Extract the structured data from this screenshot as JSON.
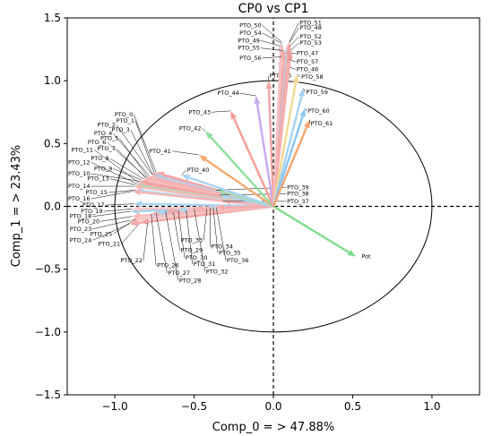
{
  "chart_data": {
    "type": "scatter",
    "subtype": "pca-loadings-biplot",
    "title": "CP0 vs CP1",
    "xlabel": "Comp_0 = > 47.88%",
    "ylabel": "Comp_1 = > 23.43%",
    "xlim": [
      -1.3,
      1.3
    ],
    "ylim": [
      -1.5,
      1.5
    ],
    "xticks": [
      -1.0,
      -0.5,
      0.0,
      0.5,
      1.0
    ],
    "yticks": [
      -1.5,
      -1.0,
      -0.5,
      0.0,
      0.5,
      1.0,
      1.5
    ],
    "xtick_labels": [
      "−1.0",
      "−0.5",
      "0.0",
      "0.5",
      "1.0"
    ],
    "ytick_labels": [
      "−1.5",
      "−1.0",
      "−0.5",
      "0.0",
      "0.5",
      "1.0",
      "1.5"
    ],
    "unit_circle": true,
    "origin_crosshair": "dashed",
    "grid": false,
    "vectors": [
      {
        "name": "Pot",
        "x": 0.52,
        "y": -0.4,
        "color": "#7fdc8c",
        "label_x": 0.55,
        "label_y": -0.4
      },
      {
        "name": "PTO_0",
        "x": -0.74,
        "y": 0.27,
        "color": "#f5a3a3",
        "label_x": -0.88,
        "label_y": 0.73
      },
      {
        "name": "PTO_1",
        "x": -0.75,
        "y": 0.26,
        "color": "#f6a8a8",
        "label_x": -0.87,
        "label_y": 0.68
      },
      {
        "name": "PTO_2",
        "x": -0.77,
        "y": 0.26,
        "color": "#f4a6a6",
        "label_x": -0.99,
        "label_y": 0.65
      },
      {
        "name": "PTO_3",
        "x": -0.76,
        "y": 0.25,
        "color": "#a9d4f2",
        "label_x": -0.9,
        "label_y": 0.61
      },
      {
        "name": "PTO_4",
        "x": -0.78,
        "y": 0.24,
        "color": "#f7b3b3",
        "label_x": -1.01,
        "label_y": 0.58
      },
      {
        "name": "PTO_5",
        "x": -0.79,
        "y": 0.23,
        "color": "#b6d9f2",
        "label_x": -0.97,
        "label_y": 0.54
      },
      {
        "name": "PTO_6",
        "x": -0.8,
        "y": 0.23,
        "color": "#f5a9a9",
        "label_x": -1.05,
        "label_y": 0.51
      },
      {
        "name": "PTO_7",
        "x": -0.8,
        "y": 0.22,
        "color": "#f8c0c0",
        "label_x": -0.99,
        "label_y": 0.46
      },
      {
        "name": "PTO_8",
        "x": -0.82,
        "y": 0.22,
        "color": "#f6b0b0",
        "label_x": -1.03,
        "label_y": 0.38
      },
      {
        "name": "PTO_9",
        "x": -0.83,
        "y": 0.21,
        "color": "#f8c4c4",
        "label_x": -1.01,
        "label_y": 0.3
      },
      {
        "name": "PTO_10",
        "x": -0.84,
        "y": 0.2,
        "color": "#f5a5a5",
        "label_x": -1.15,
        "label_y": 0.26
      },
      {
        "name": "PTO_11",
        "x": -0.85,
        "y": 0.19,
        "color": "#f4a0a0",
        "label_x": -1.13,
        "label_y": 0.45
      },
      {
        "name": "PTO_12",
        "x": -0.86,
        "y": 0.18,
        "color": "#f6adad",
        "label_x": -1.15,
        "label_y": 0.35
      },
      {
        "name": "PTO_13",
        "x": -0.87,
        "y": 0.17,
        "color": "#a6ddb0",
        "label_x": -1.03,
        "label_y": 0.22
      },
      {
        "name": "PTO_14",
        "x": -0.88,
        "y": 0.16,
        "color": "#f7b8b8",
        "label_x": -1.15,
        "label_y": 0.16
      },
      {
        "name": "PTO_15",
        "x": -0.87,
        "y": 0.13,
        "color": "#b5dcef",
        "label_x": -1.04,
        "label_y": 0.11
      },
      {
        "name": "PTO_16",
        "x": -0.89,
        "y": 0.12,
        "color": "#f5b2b2",
        "label_x": -1.15,
        "label_y": 0.06
      },
      {
        "name": "PTO_17",
        "x": -0.88,
        "y": 0.02,
        "color": "#a8d3f0",
        "label_x": -1.06,
        "label_y": 0.01
      },
      {
        "name": "PTO_18",
        "x": -0.9,
        "y": -0.04,
        "color": "#a3d0ee",
        "label_x": -1.14,
        "label_y": -0.08
      },
      {
        "name": "PTO_19",
        "x": -0.89,
        "y": -0.02,
        "color": "#f8c8c8",
        "label_x": -1.07,
        "label_y": -0.04
      },
      {
        "name": "PTO_20",
        "x": -0.89,
        "y": -0.08,
        "color": "#f6b6b6",
        "label_x": -1.09,
        "label_y": -0.12
      },
      {
        "name": "PTO_21",
        "x": -0.84,
        "y": -0.13,
        "color": "#f4a3a3",
        "label_x": -0.96,
        "label_y": -0.3
      },
      {
        "name": "PTO_22",
        "x": -0.79,
        "y": -0.09,
        "color": "#b8dff4",
        "label_x": -0.82,
        "label_y": -0.43
      },
      {
        "name": "PTO_23",
        "x": -0.9,
        "y": -0.11,
        "color": "#f7bcbc",
        "label_x": -1.14,
        "label_y": -0.18
      },
      {
        "name": "PTO_24",
        "x": -0.91,
        "y": -0.14,
        "color": "#f4a4a4",
        "label_x": -1.14,
        "label_y": -0.27
      },
      {
        "name": "PTO_25",
        "x": -0.87,
        "y": -0.1,
        "color": "#f8c6c6",
        "label_x": -1.01,
        "label_y": -0.22
      },
      {
        "name": "PTO_26",
        "x": -0.77,
        "y": -0.06,
        "color": "#f6afaf",
        "label_x": -0.74,
        "label_y": -0.47
      },
      {
        "name": "PTO_27",
        "x": -0.74,
        "y": -0.05,
        "color": "#a9d7ee",
        "label_x": -0.67,
        "label_y": -0.53
      },
      {
        "name": "PTO_28",
        "x": -0.68,
        "y": -0.04,
        "color": "#f3a9a9",
        "label_x": -0.6,
        "label_y": -0.59
      },
      {
        "name": "PTO_29",
        "x": -0.63,
        "y": -0.05,
        "color": "#f5b4b4",
        "label_x": -0.59,
        "label_y": -0.35
      },
      {
        "name": "PTO_30",
        "x": -0.6,
        "y": -0.03,
        "color": "#b0d8f0",
        "label_x": -0.56,
        "label_y": -0.41
      },
      {
        "name": "PTO_31",
        "x": -0.55,
        "y": -0.03,
        "color": "#f7bcbc",
        "label_x": -0.51,
        "label_y": -0.46
      },
      {
        "name": "PTO_32",
        "x": -0.5,
        "y": -0.02,
        "color": "#f5b0b0",
        "label_x": -0.43,
        "label_y": -0.52
      },
      {
        "name": "PTO_33",
        "x": -0.42,
        "y": -0.02,
        "color": "#f6bcbc",
        "label_x": -0.44,
        "label_y": -0.27
      },
      {
        "name": "PTO_34",
        "x": -0.4,
        "y": -0.01,
        "color": "#b2dbf0",
        "label_x": -0.4,
        "label_y": -0.32
      },
      {
        "name": "PTO_35",
        "x": -0.38,
        "y": -0.01,
        "color": "#f8c2c2",
        "label_x": -0.35,
        "label_y": -0.37
      },
      {
        "name": "PTO_36",
        "x": -0.36,
        "y": -0.01,
        "color": "#f5aaaa",
        "label_x": -0.3,
        "label_y": -0.43
      },
      {
        "name": "PTO_37",
        "x": -0.32,
        "y": 0.04,
        "color": "#f7b6b6",
        "label_x": 0.08,
        "label_y": 0.04
      },
      {
        "name": "PTO_38",
        "x": -0.34,
        "y": 0.09,
        "color": "#a7d6ee",
        "label_x": 0.08,
        "label_y": 0.1
      },
      {
        "name": "PTO_39",
        "x": -0.36,
        "y": 0.13,
        "color": "#a8dbb4",
        "label_x": 0.08,
        "label_y": 0.15
      },
      {
        "name": "PTO_40",
        "x": -0.58,
        "y": 0.25,
        "color": "#a8d4f2",
        "label_x": -0.55,
        "label_y": 0.29
      },
      {
        "name": "PTO_41",
        "x": -0.47,
        "y": 0.41,
        "color": "#f4a96f",
        "label_x": -0.64,
        "label_y": 0.44
      },
      {
        "name": "PTO_42",
        "x": -0.43,
        "y": 0.6,
        "color": "#8fe09d",
        "label_x": -0.45,
        "label_y": 0.62
      },
      {
        "name": "PTO_43",
        "x": -0.27,
        "y": 0.76,
        "color": "#f59c96",
        "label_x": -0.39,
        "label_y": 0.75
      },
      {
        "name": "PTO_44",
        "x": -0.11,
        "y": 0.88,
        "color": "#c7aaee",
        "label_x": -0.21,
        "label_y": 0.9
      },
      {
        "name": "PTO_45",
        "x": -0.03,
        "y": 1.0,
        "color": "#f1a4a4",
        "label_x": -0.03,
        "label_y": 1.04
      },
      {
        "name": "PTO_46",
        "x": 0.07,
        "y": 1.12,
        "color": "#f7dc8c",
        "label_x": 0.14,
        "label_y": 1.09
      },
      {
        "name": "PTO_47",
        "x": 0.07,
        "y": 1.22,
        "color": "#f4a3a3",
        "label_x": 0.14,
        "label_y": 1.22
      },
      {
        "name": "PTO_48",
        "x": 0.09,
        "y": 1.28,
        "color": "#a8d7ee",
        "label_x": 0.16,
        "label_y": 1.42
      },
      {
        "name": "PTO_49",
        "x": 0.06,
        "y": 1.27,
        "color": "#f4a3a3",
        "label_x": -0.08,
        "label_y": 1.32
      },
      {
        "name": "PTO_50",
        "x": 0.05,
        "y": 1.31,
        "color": "#b5dcf0",
        "label_x": -0.07,
        "label_y": 1.44
      },
      {
        "name": "PTO_51",
        "x": 0.1,
        "y": 1.31,
        "color": "#f6b3b3",
        "label_x": 0.16,
        "label_y": 1.46
      },
      {
        "name": "PTO_52",
        "x": 0.1,
        "y": 1.27,
        "color": "#f3a0a0",
        "label_x": 0.16,
        "label_y": 1.35
      },
      {
        "name": "PTO_53",
        "x": 0.11,
        "y": 1.24,
        "color": "#f29e9e",
        "label_x": 0.16,
        "label_y": 1.3
      },
      {
        "name": "PTO_54",
        "x": 0.05,
        "y": 1.3,
        "color": "#f7bcbc",
        "label_x": -0.07,
        "label_y": 1.38
      },
      {
        "name": "PTO_55",
        "x": 0.06,
        "y": 1.24,
        "color": "#f4aaaa",
        "label_x": -0.08,
        "label_y": 1.26
      },
      {
        "name": "PTO_56",
        "x": 0.05,
        "y": 1.19,
        "color": "#f8c2c2",
        "label_x": -0.07,
        "label_y": 1.18
      },
      {
        "name": "PTO_57",
        "x": 0.1,
        "y": 1.17,
        "color": "#f6b0b0",
        "label_x": 0.14,
        "label_y": 1.15
      },
      {
        "name": "PTO_58",
        "x": 0.15,
        "y": 1.05,
        "color": "#f2d98e",
        "label_x": 0.17,
        "label_y": 1.03
      },
      {
        "name": "PTO_59",
        "x": 0.19,
        "y": 0.94,
        "color": "#a6d2f0",
        "label_x": 0.2,
        "label_y": 0.91
      },
      {
        "name": "PTO_60",
        "x": 0.2,
        "y": 0.78,
        "color": "#8cc4ee",
        "label_x": 0.21,
        "label_y": 0.76
      },
      {
        "name": "PTO_61",
        "x": 0.23,
        "y": 0.69,
        "color": "#f5a46c",
        "label_x": 0.23,
        "label_y": 0.66
      }
    ]
  },
  "colors": {
    "axes": "#000000",
    "background": "#ffffff",
    "leader_line": "#000000"
  }
}
